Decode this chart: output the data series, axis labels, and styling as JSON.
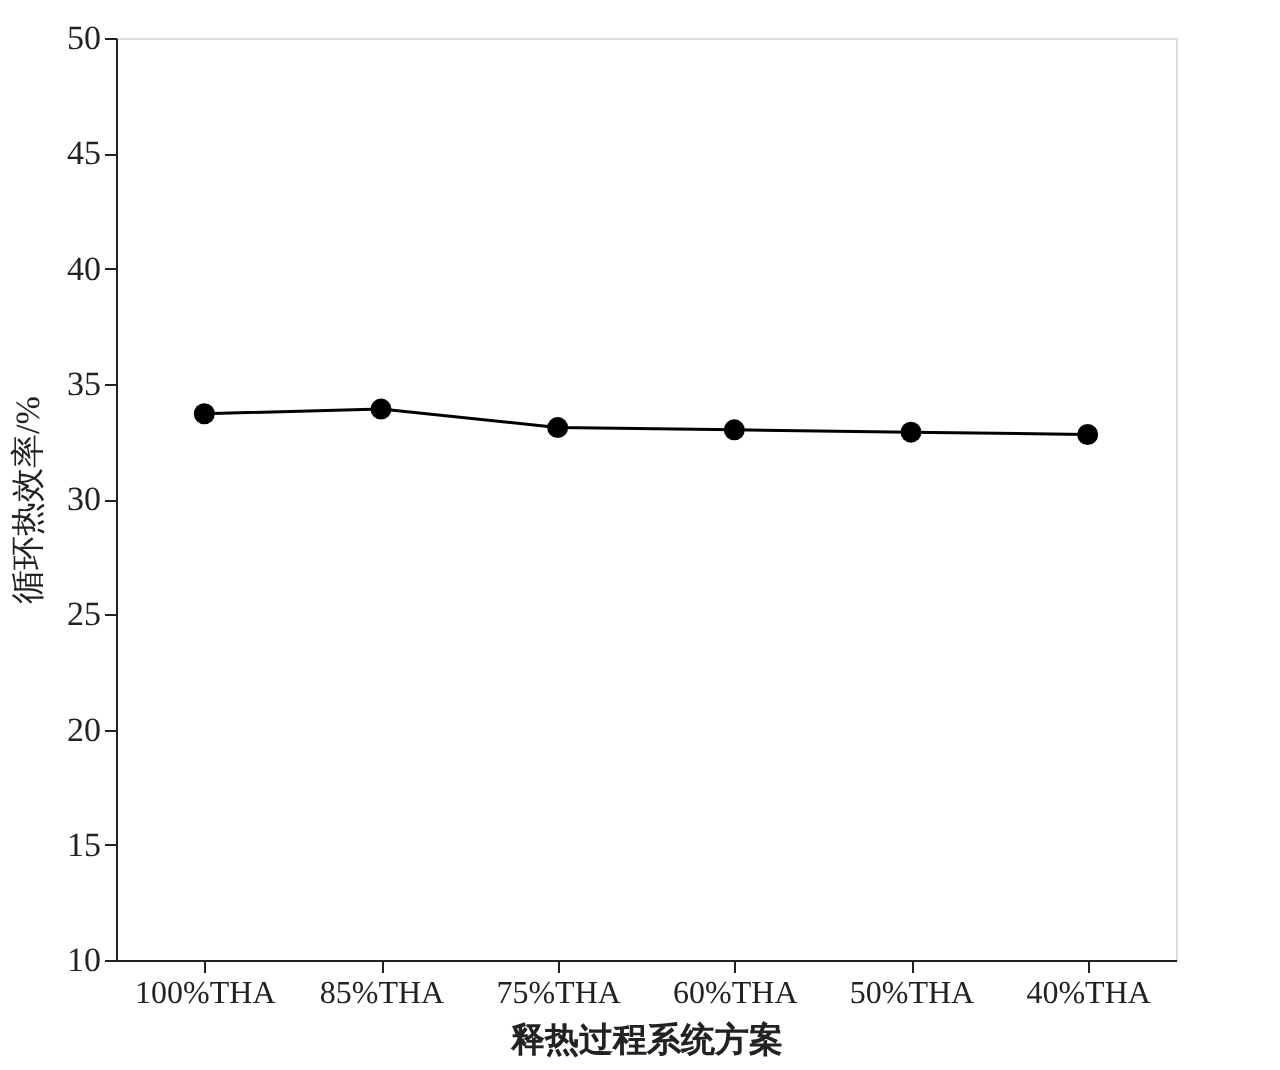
{
  "chart_data": {
    "type": "line",
    "xlabel": "释热过程系统方案",
    "ylabel": "循环热效率/%",
    "categories": [
      "100%THA",
      "85%THA",
      "75%THA",
      "60%THA",
      "50%THA",
      "40%THA"
    ],
    "series": [
      {
        "color": "#000000",
        "values": [
          33.7,
          33.9,
          33.1,
          33.0,
          32.9,
          32.8
        ]
      }
    ],
    "ylim": [
      10,
      50
    ],
    "yticks": [
      10,
      15,
      20,
      25,
      30,
      35,
      40,
      45,
      50
    ],
    "grid": false,
    "marker": "circle",
    "line_style": "solid"
  }
}
